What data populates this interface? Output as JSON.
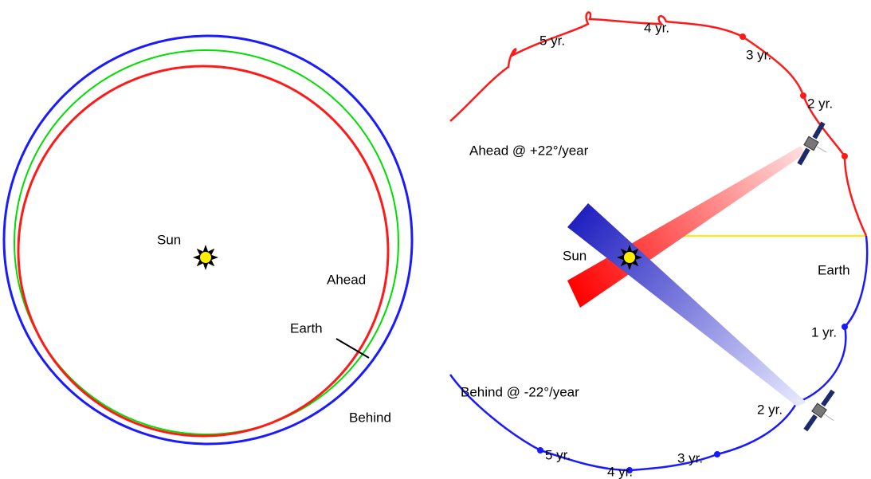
{
  "left_panel": {
    "sun": "Sun",
    "ahead": "Ahead",
    "earth": "Earth",
    "behind": "Behind"
  },
  "right_panel": {
    "ahead_title": "Ahead @ +22°/year",
    "sun": "Sun",
    "earth": "Earth",
    "behind_title": "Behind @ -22°/year",
    "ahead_years": [
      "2 yr.",
      "3 yr.",
      "4 yr.",
      "5 yr."
    ],
    "behind_years": [
      "1 yr.",
      "2 yr.",
      "3 yr.",
      "4 yr.",
      "5 yr."
    ]
  }
}
